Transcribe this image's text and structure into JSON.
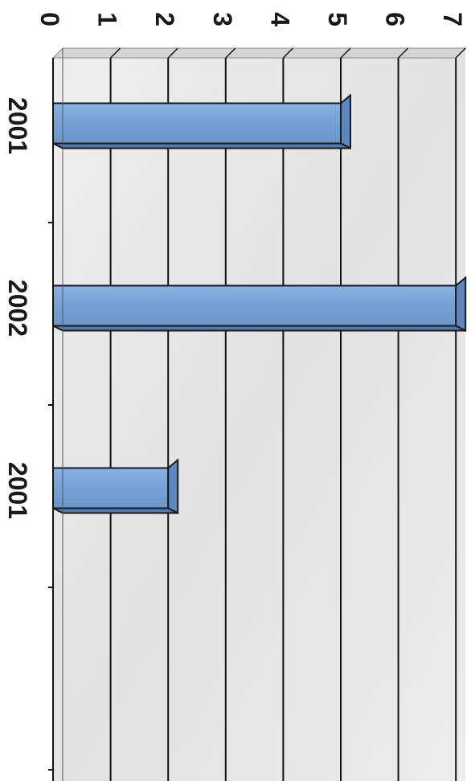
{
  "chart_data": {
    "type": "bar",
    "orientation": "rotated-90-clockwise",
    "categories": [
      "2001",
      "2002",
      "2001"
    ],
    "values": [
      5,
      7,
      2
    ],
    "y_ticks": [
      "0",
      "1",
      "2",
      "3",
      "4",
      "5",
      "6",
      "7"
    ],
    "ylim": [
      0,
      7
    ],
    "grid": true,
    "legend": "none",
    "bar_color": "#7ba3d8",
    "wall_color": "#e4e4e4"
  }
}
